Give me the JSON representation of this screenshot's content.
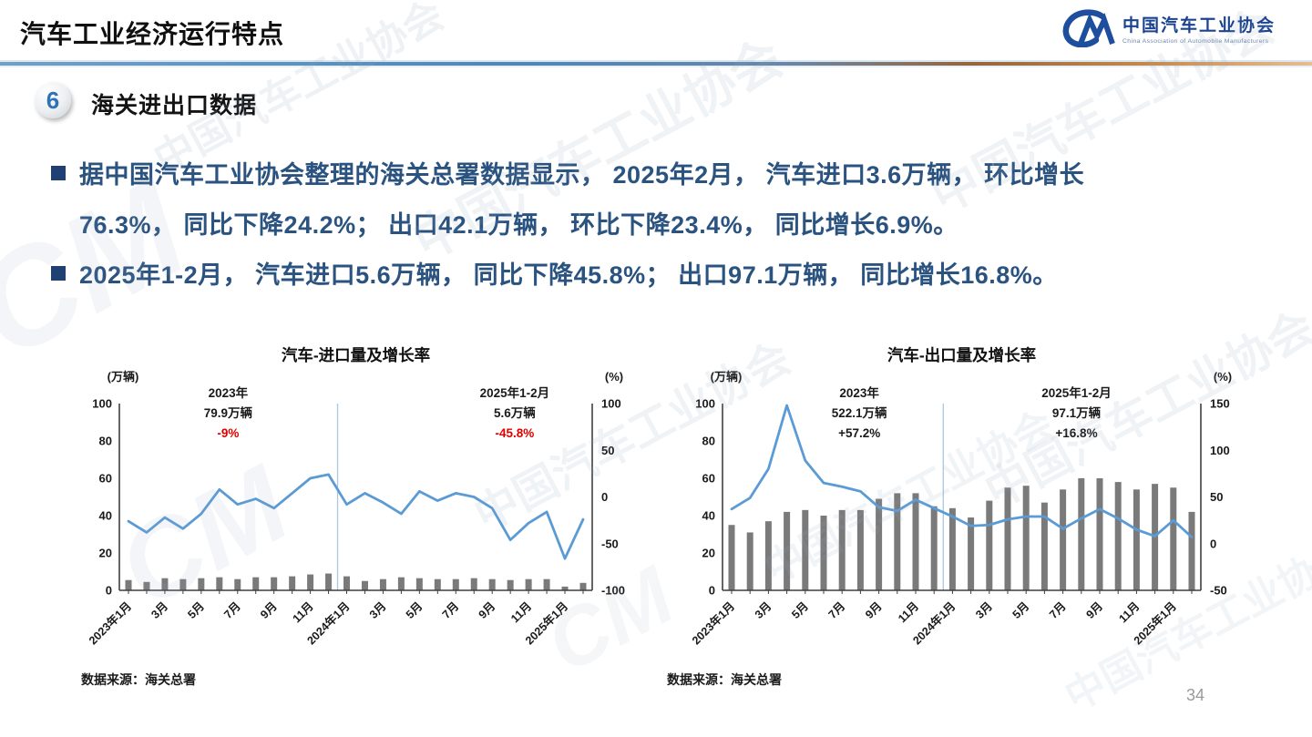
{
  "page": {
    "title": "汽车工业经济运行特点",
    "page_number": "34",
    "section": {
      "number": "6",
      "title": "海关进出口数据"
    },
    "logo": {
      "mark": "CM",
      "name_cn": "中国汽车工业协会",
      "name_en": "China Association of Automobile Manufacturers"
    },
    "bullets": [
      {
        "marker": true,
        "text": "据中国汽车工业协会整理的海关总署数据显示， 2025年2月， 汽车进口3.6万辆， 环比增长"
      },
      {
        "marker": false,
        "text": "76.3%， 同比下降24.2%； 出口42.1万辆， 环比下降23.4%， 同比增长6.9%。"
      },
      {
        "marker": true,
        "text": "2025年1-2月， 汽车进口5.6万辆， 同比下降45.8%； 出口97.1万辆， 同比增长16.8%。"
      }
    ],
    "watermark_text": "中国汽车工业协会"
  },
  "colors": {
    "accent_line": "#5B9BD5",
    "bar": "#7A7A7A",
    "axis": "#3F3F3F",
    "divider": "#A9C7E0",
    "red": "#E00000",
    "text_dark": "#1A1A1A",
    "logo_blue": "#1E4F9E"
  },
  "chart_data": [
    {
      "type": "bar+line",
      "title": "汽车-进口量及增长率",
      "left_axis_label": "(万辆)",
      "right_axis_label": "(%)",
      "left_min": 0,
      "left_max": 100,
      "left_ticks": [
        0,
        20,
        40,
        60,
        80,
        100
      ],
      "right_min": -100,
      "right_max": 100,
      "right_ticks": [
        -100,
        -50,
        0,
        50,
        100
      ],
      "x_labels": [
        "2023年1月",
        "3月",
        "5月",
        "7月",
        "9月",
        "11月",
        "2024年1月",
        "3月",
        "5月",
        "7月",
        "9月",
        "11月",
        "2025年1月"
      ],
      "bars_unit": "万辆",
      "bars": [
        5.5,
        4.5,
        6.5,
        6,
        6.5,
        7,
        6,
        7,
        7,
        7.5,
        8.5,
        9,
        7.5,
        5,
        6,
        7,
        6.5,
        6,
        6,
        6.5,
        6,
        5.5,
        6,
        6,
        2,
        4
      ],
      "line_unit": "%",
      "line": [
        -26,
        -38,
        -22,
        -34,
        -18,
        8,
        -8,
        -2,
        -12,
        4,
        20,
        24,
        -8,
        4,
        -6,
        -18,
        6,
        -4,
        4,
        0,
        -12,
        -46,
        -28,
        -16,
        -66,
        -24
      ],
      "divider_after_index": 11,
      "annotations": [
        {
          "lines": [
            "2023年",
            "79.9万辆",
            "-9%"
          ],
          "line_colors": [
            "#1A1A1A",
            "#1A1A1A",
            "#E00000"
          ],
          "x_frac": 0.23
        },
        {
          "lines": [
            "2025年1-2月",
            "5.6万辆",
            "-45.8%"
          ],
          "line_colors": [
            "#1A1A1A",
            "#1A1A1A",
            "#E00000"
          ],
          "x_frac": 0.836
        }
      ],
      "source": "数据来源：海关总署"
    },
    {
      "type": "bar+line",
      "title": "汽车-出口量及增长率",
      "left_axis_label": "(万辆)",
      "right_axis_label": "(%)",
      "left_min": 0,
      "left_max": 100,
      "left_ticks": [
        0,
        20,
        40,
        60,
        80,
        100
      ],
      "right_min": -50,
      "right_max": 150,
      "right_ticks": [
        -50,
        0,
        50,
        100,
        150
      ],
      "x_labels": [
        "2023年1月",
        "3月",
        "5月",
        "7月",
        "9月",
        "11月",
        "2024年1月",
        "3月",
        "5月",
        "7月",
        "9月",
        "11月",
        "2025年1月"
      ],
      "bars_unit": "万辆",
      "bars": [
        35,
        31,
        37,
        42,
        43,
        40,
        43,
        43,
        49,
        52,
        52,
        45,
        44,
        39,
        48,
        55,
        56,
        47,
        54,
        60,
        60,
        58,
        54,
        57,
        55,
        42
      ],
      "line_unit": "%",
      "line": [
        37,
        49,
        80,
        148,
        89,
        65,
        61,
        56,
        39,
        35,
        47,
        38,
        29,
        19,
        20,
        26,
        29,
        29,
        16,
        27,
        37,
        27,
        15,
        8,
        25,
        7
      ],
      "divider_after_index": 11,
      "annotations": [
        {
          "lines": [
            "2023年",
            "522.1万辆",
            "+57.2%"
          ],
          "line_colors": [
            "#1A1A1A",
            "#1A1A1A",
            "#1A1A1A"
          ],
          "x_frac": 0.286
        },
        {
          "lines": [
            "2025年1-2月",
            "97.1万辆",
            "+16.8%"
          ],
          "line_colors": [
            "#1A1A1A",
            "#1A1A1A",
            "#1A1A1A"
          ],
          "x_frac": 0.74
        }
      ],
      "source": "数据来源：海关总署"
    }
  ]
}
